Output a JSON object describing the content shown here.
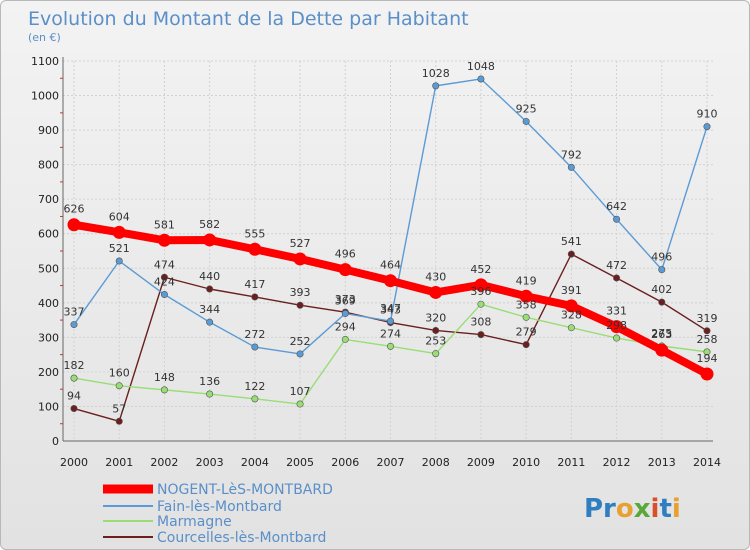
{
  "chart_data": {
    "type": "line",
    "title": "Evolution du Montant de la Dette par Habitant",
    "subtitle": "(en €)",
    "xlabel": "",
    "ylabel": "",
    "ylim": [
      0,
      1100
    ],
    "yticks": [
      0,
      100,
      200,
      300,
      400,
      500,
      600,
      700,
      800,
      900,
      1000,
      1100
    ],
    "grid": true,
    "legend": "bottom-left",
    "x": [
      "2000",
      "2001",
      "2002",
      "2003",
      "2004",
      "2005",
      "2006",
      "2007",
      "2008",
      "2009",
      "2010",
      "2011",
      "2012",
      "2013",
      "2014"
    ],
    "series": [
      {
        "name": "NOGENT-LèS-MONTBARD",
        "color": "#ff0000",
        "values": [
          626,
          604,
          581,
          582,
          555,
          527,
          496,
          464,
          430,
          452,
          419,
          391,
          331,
          263,
          194
        ]
      },
      {
        "name": "Fain-lès-Montbard",
        "color": "#5b9bd5",
        "values": [
          337,
          521,
          424,
          344,
          272,
          252,
          369,
          347,
          1028,
          1048,
          925,
          792,
          642,
          496,
          910
        ]
      },
      {
        "name": "Marmagne",
        "color": "#99dd77",
        "values": [
          182,
          160,
          148,
          136,
          122,
          107,
          294,
          274,
          253,
          396,
          358,
          328,
          298,
          275,
          258
        ]
      },
      {
        "name": "Courcelles-lès-Montbard",
        "color": "#6b1f1f",
        "values": [
          94,
          57,
          474,
          440,
          417,
          393,
          373,
          343,
          320,
          308,
          279,
          541,
          472,
          402,
          319
        ]
      }
    ]
  },
  "brand": {
    "text": "Proxiti"
  }
}
